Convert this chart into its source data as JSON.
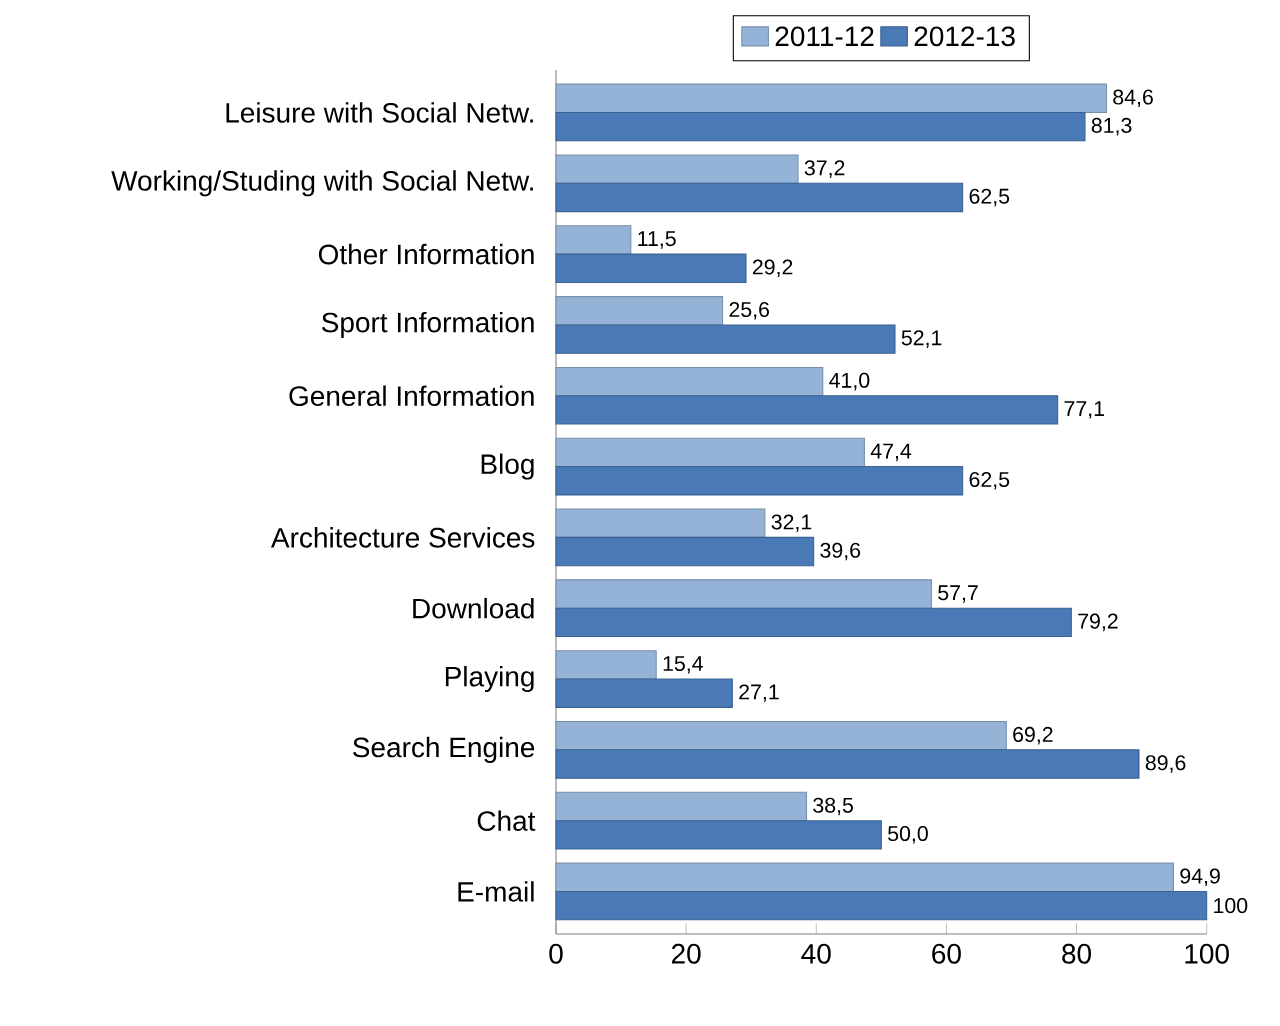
{
  "chart_data": {
    "type": "bar",
    "orientation": "horizontal",
    "legend": "top",
    "categories": [
      "Leisure with Social Netw.",
      "Working/Studing with Social Netw.",
      "Other Information",
      "Sport Information",
      "General Information",
      "Blog",
      "Architecture Services",
      "Download",
      "Playing",
      "Search Engine",
      "Chat",
      "E-mail"
    ],
    "series": [
      {
        "name": "2011-12",
        "color": "#95b3d7",
        "values": [
          84.6,
          37.2,
          11.5,
          25.6,
          41.0,
          47.4,
          32.1,
          57.7,
          15.4,
          69.2,
          38.5,
          94.9
        ],
        "value_labels": [
          "84,6",
          "37,2",
          "11,5",
          "25,6",
          "41,0",
          "47,4",
          "32,1",
          "57,7",
          "15,4",
          "69,2",
          "38,5",
          "94,9"
        ]
      },
      {
        "name": "2012-13",
        "color": "#4a7ab5",
        "values": [
          81.3,
          62.5,
          29.2,
          52.1,
          77.1,
          62.5,
          39.6,
          79.2,
          27.1,
          89.6,
          50.0,
          100
        ],
        "value_labels": [
          "81,3",
          "62,5",
          "29,2",
          "52,1",
          "77,1",
          "62,5",
          "39,6",
          "79,2",
          "27,1",
          "89,6",
          "50,0",
          "100"
        ]
      }
    ],
    "xlim": [
      0,
      100
    ],
    "xticks": [
      0,
      20,
      40,
      60,
      80,
      100
    ]
  }
}
